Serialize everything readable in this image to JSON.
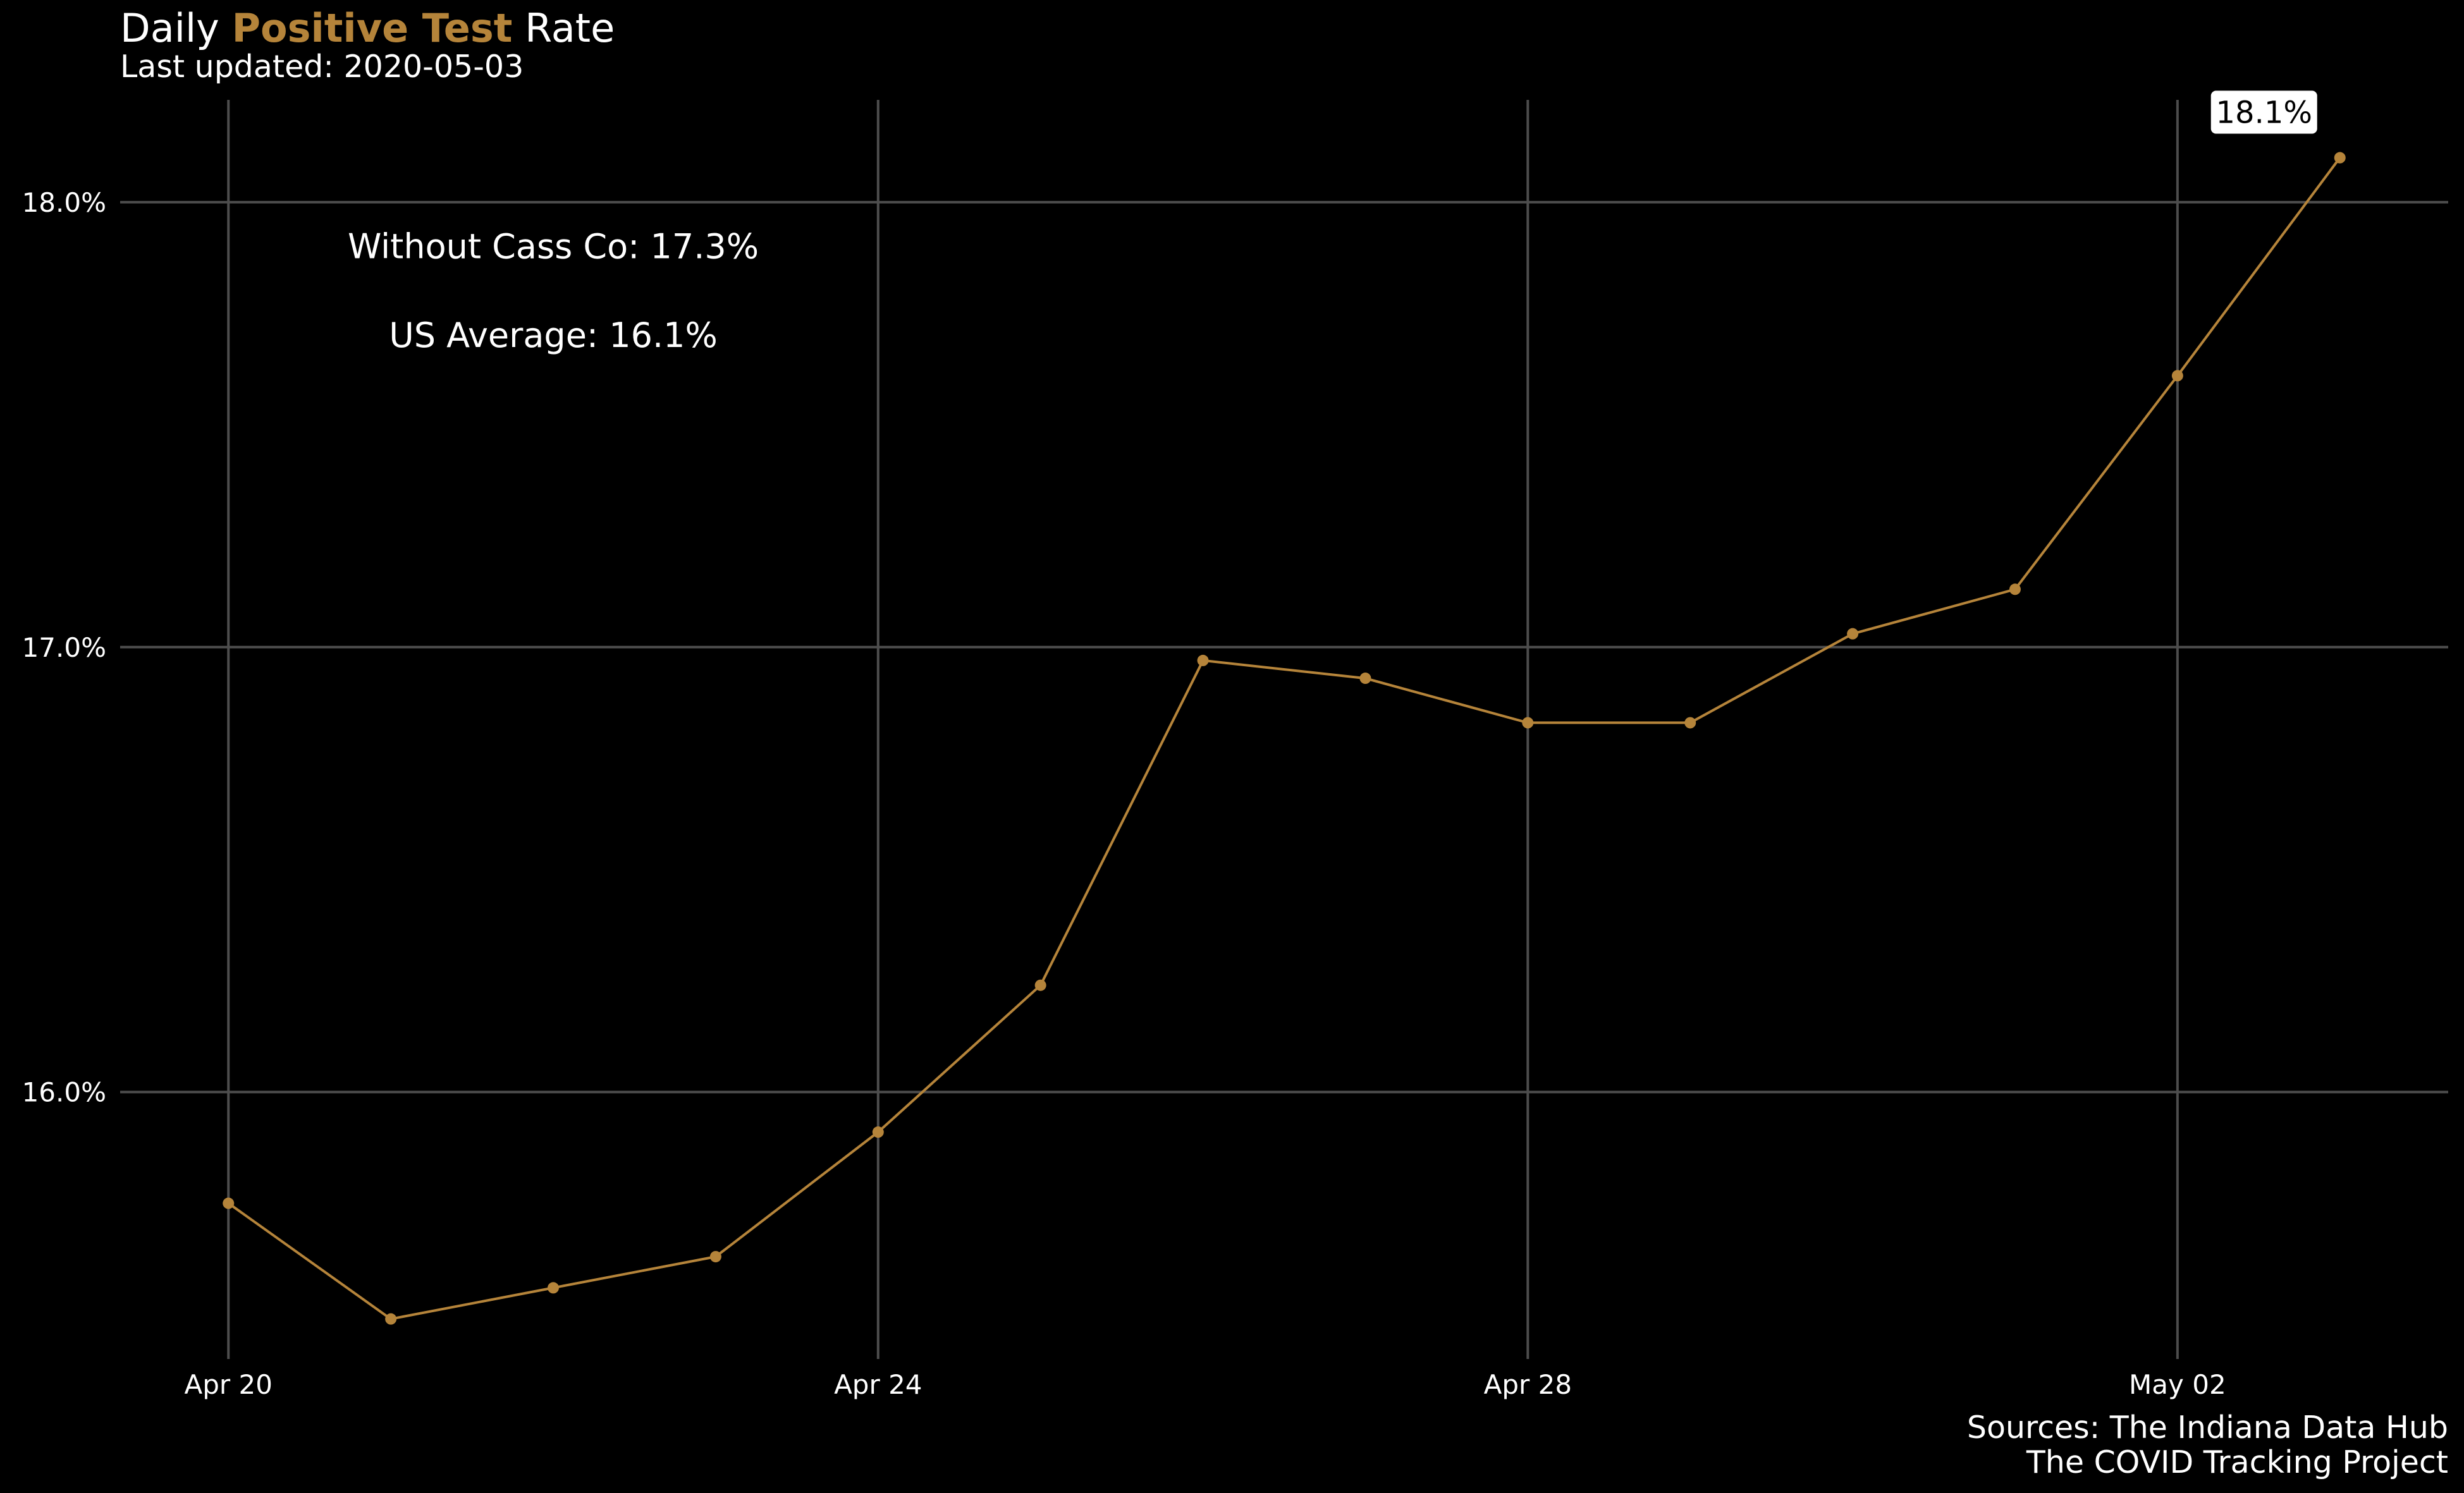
{
  "colors": {
    "background": "#000000",
    "accent": "#b5843a",
    "grid": "#4d4d4d",
    "text": "#ffffff",
    "label_box_bg": "#ffffff",
    "label_box_text": "#000000"
  },
  "chart_data": {
    "type": "line",
    "title": {
      "prefix": "Daily ",
      "highlight": "Positive Test",
      "suffix": " Rate"
    },
    "subtitle": "Last updated: 2020-05-03",
    "caption": [
      "Sources: The Indiana Data Hub",
      "The COVID Tracking Project"
    ],
    "x": [
      "2020-04-20",
      "2020-04-21",
      "2020-04-22",
      "2020-04-23",
      "2020-04-24",
      "2020-04-25",
      "2020-04-26",
      "2020-04-27",
      "2020-04-28",
      "2020-04-29",
      "2020-04-30",
      "2020-05-01",
      "2020-05-02",
      "2020-05-03"
    ],
    "series": [
      {
        "values": [
          15.75,
          15.49,
          15.56,
          15.63,
          15.91,
          16.24,
          16.97,
          16.93,
          16.83,
          16.83,
          17.03,
          17.13,
          17.61,
          18.1
        ]
      }
    ],
    "xlim": [
      "2020-04-19T08:00",
      "2020-05-03T16:00"
    ],
    "ylim": [
      15.4,
      18.23
    ],
    "x_ticks": [
      {
        "date": "2020-04-20",
        "label": "Apr 20"
      },
      {
        "date": "2020-04-24",
        "label": "Apr 24"
      },
      {
        "date": "2020-04-28",
        "label": "Apr 28"
      },
      {
        "date": "2020-05-02",
        "label": "May 02"
      }
    ],
    "y_ticks": [
      {
        "value": 16.0,
        "label": "16.0%"
      },
      {
        "value": 17.0,
        "label": "17.0%"
      },
      {
        "value": 18.0,
        "label": "18.0%"
      }
    ],
    "grid": true,
    "last_point_label": "18.1%",
    "annotations": [
      {
        "text": "Without Cass Co: 17.3%",
        "x": "2020-04-22",
        "y": 17.9
      },
      {
        "text": "US Average: 16.1%",
        "x": "2020-04-22",
        "y": 17.7
      }
    ]
  }
}
